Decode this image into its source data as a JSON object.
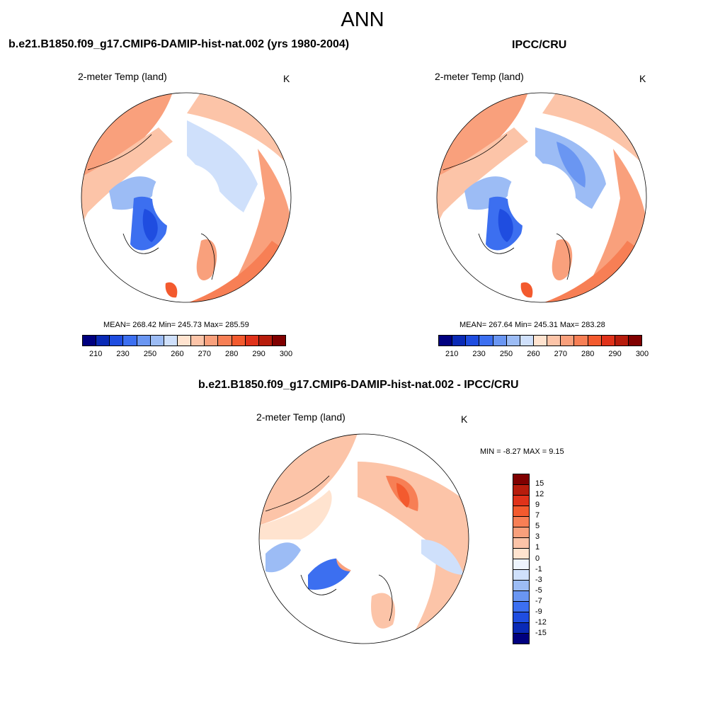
{
  "figure_title": "ANN",
  "panels": [
    {
      "title": "b.e21.B1850.f09_g17.CMIP6-DAMIP-hist-nat.002 (yrs 1980-2004)",
      "variable": "2-meter Temp (land)",
      "units": "K",
      "stats": "MEAN= 268.42  Min= 245.73  Max= 285.59"
    },
    {
      "title": "IPCC/CRU",
      "variable": "2-meter Temp (land)",
      "units": "K",
      "stats": "MEAN= 267.64  Min= 245.31  Max= 283.28"
    },
    {
      "title": "b.e21.B1850.f09_g17.CMIP6-DAMIP-hist-nat.002 - IPCC/CRU",
      "variable": "2-meter Temp (land)",
      "units": "K",
      "stats": "MIN =  -8.27 MAX =   9.15"
    }
  ],
  "abs_colorbar": {
    "ticks": [
      "210",
      "230",
      "250",
      "260",
      "270",
      "280",
      "290",
      "300"
    ],
    "colors": [
      "#00007f",
      "#0a2ab6",
      "#1f4de0",
      "#3c6ff0",
      "#6a96f2",
      "#9cbcf5",
      "#cfe0fb",
      "#ffe3cf",
      "#fcc4a8",
      "#f9a07c",
      "#f77f55",
      "#f35a2e",
      "#e0321a",
      "#b71c0c",
      "#800000"
    ]
  },
  "diff_colorbar": {
    "ticks": [
      "15",
      "12",
      "9",
      "7",
      "5",
      "3",
      "1",
      "0",
      "-1",
      "-3",
      "-5",
      "-7",
      "-9",
      "-12",
      "-15"
    ],
    "colors": [
      "#800000",
      "#b71c0c",
      "#e0321a",
      "#f35a2e",
      "#f77f55",
      "#f9a07c",
      "#fcc4a8",
      "#ffe3cf",
      "#eef4fd",
      "#cfe0fb",
      "#9cbcf5",
      "#6a96f2",
      "#3c6ff0",
      "#1f4de0",
      "#0a2ab6",
      "#00007f"
    ]
  }
}
